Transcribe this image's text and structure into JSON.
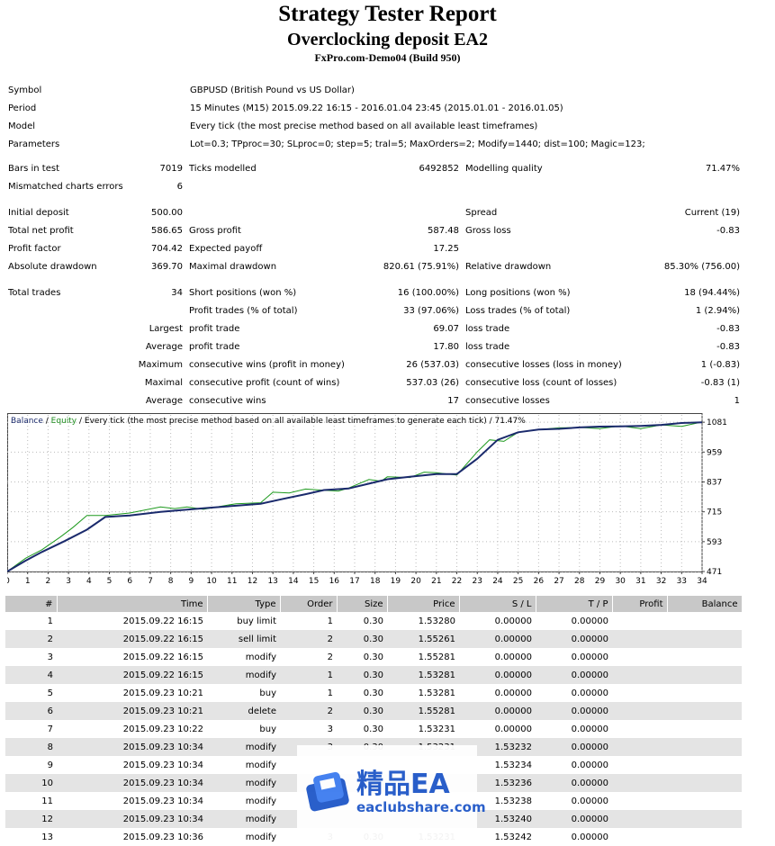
{
  "report": {
    "title": "Strategy Tester Report",
    "subtitle": "Overclocking deposit EA2",
    "server": "FxPro.com-Demo04 (Build 950)"
  },
  "info": {
    "symbol_label": "Symbol",
    "symbol": "GBPUSD (British Pound vs US Dollar)",
    "period_label": "Period",
    "period": "15 Minutes (M15) 2015.09.22 16:15 - 2016.01.04 23:45 (2015.01.01 - 2016.01.05)",
    "model_label": "Model",
    "model": "Every tick (the most precise method based on all available least timeframes)",
    "params_label": "Parameters",
    "params": "Lot=0.3; TPproc=30; SLproc=0; step=5; tral=5; MaxOrders=2; Modify=1440; dist=100; Magic=123;"
  },
  "stats": {
    "bars_label": "Bars in test",
    "bars": "7019",
    "ticks_label": "Ticks modelled",
    "ticks": "6492852",
    "mq_label": "Modelling quality",
    "mq": "71.47%",
    "mce_label": "Mismatched charts errors",
    "mce": "6",
    "dep_label": "Initial deposit",
    "dep": "500.00",
    "spread_label": "Spread",
    "spread": "Current (19)",
    "tnp_label": "Total net profit",
    "tnp": "586.65",
    "gp_label": "Gross profit",
    "gp": "587.48",
    "gl_label": "Gross loss",
    "gl": "-0.83",
    "pf_label": "Profit factor",
    "pf": "704.42",
    "ep_label": "Expected payoff",
    "ep": "17.25",
    "ad_label": "Absolute drawdown",
    "ad": "369.70",
    "md_label": "Maximal drawdown",
    "md": "820.61 (75.91%)",
    "rd_label": "Relative drawdown",
    "rd": "85.30% (756.00)",
    "tt_label": "Total trades",
    "tt": "34",
    "sp_label": "Short positions (won %)",
    "sp": "16 (100.00%)",
    "lp_label": "Long positions (won %)",
    "lp": "18 (94.44%)",
    "pt_label": "Profit trades (% of total)",
    "pt": "33 (97.06%)",
    "lt_label": "Loss trades (% of total)",
    "lt": "1 (2.94%)",
    "largest": "Largest",
    "lpt_label": "profit trade",
    "lpt": "69.07",
    "llt_label": "loss trade",
    "llt": "-0.83",
    "average": "Average",
    "apt_label": "profit trade",
    "apt": "17.80",
    "alt_label": "loss trade",
    "alt": "-0.83",
    "maximum": "Maximum",
    "mcw_label": "consecutive wins (profit in money)",
    "mcw": "26 (537.03)",
    "mcl_label": "consecutive losses (loss in money)",
    "mcl": "1 (-0.83)",
    "maximal": "Maximal",
    "mcp_label": "consecutive profit (count of wins)",
    "mcp": "537.03 (26)",
    "mclc_label": "consecutive loss (count of losses)",
    "mclc": "-0.83 (1)",
    "average2": "Average",
    "acw_label": "consecutive wins",
    "acw": "17",
    "acl_label": "consecutive losses",
    "acl": "1"
  },
  "chart_legend": {
    "balance": "Balance",
    "sep1": " / ",
    "equity": "Equity",
    "rest": " / Every tick (the most precise method based on all available least timeframes to generate each tick) / 71.47%"
  },
  "chart_data": {
    "type": "line",
    "x_ticks": [
      0,
      1,
      2,
      3,
      4,
      5,
      6,
      7,
      8,
      9,
      10,
      11,
      12,
      13,
      14,
      15,
      16,
      17,
      18,
      19,
      20,
      21,
      22,
      23,
      24,
      25,
      26,
      27,
      28,
      29,
      30,
      31,
      32,
      33,
      34
    ],
    "y_ticks": [
      471,
      593,
      715,
      837,
      959,
      1081
    ],
    "ylim": [
      471,
      1111
    ],
    "xlim": [
      0,
      34
    ],
    "series": [
      {
        "name": "Balance",
        "color": "#1a2a6c",
        "x": [
          0,
          0.9,
          1.7,
          2.8,
          3.9,
          4.8,
          6,
          7.5,
          8.8,
          10,
          11.2,
          12.4,
          13.5,
          14.6,
          15.5,
          16.7,
          17.7,
          18.6,
          19.7,
          21,
          22,
          23,
          24,
          25,
          26,
          27,
          28,
          29,
          30,
          31,
          32,
          33,
          34
        ],
        "y": [
          471,
          515,
          551,
          595,
          642,
          694,
          700,
          715,
          724,
          732,
          740,
          748,
          768,
          787,
          804,
          810,
          830,
          848,
          858,
          869,
          869,
          932,
          1009,
          1040,
          1051,
          1054,
          1060,
          1063,
          1064,
          1066,
          1070,
          1078,
          1081
        ]
      },
      {
        "name": "Equity",
        "color": "#1e9a1e",
        "x": [
          0,
          0.9,
          1.7,
          2.6,
          3.2,
          3.9,
          4.8,
          6,
          7.5,
          8.2,
          8.8,
          9.6,
          10.4,
          11.2,
          12.4,
          13,
          13.8,
          14.6,
          15.5,
          16.2,
          16.7,
          17.7,
          18.3,
          18.6,
          19.7,
          20.4,
          21,
          22,
          23,
          23.6,
          24.3,
          25,
          26,
          27,
          28,
          29,
          30,
          31,
          32,
          33,
          34
        ],
        "y": [
          471,
          525,
          560,
          612,
          650,
          700,
          700,
          710,
          735,
          728,
          735,
          725,
          737,
          748,
          752,
          795,
          792,
          808,
          803,
          800,
          812,
          847,
          840,
          858,
          855,
          877,
          875,
          865,
          960,
          1009,
          1003,
          1040,
          1051,
          1058,
          1060,
          1055,
          1066,
          1055,
          1070,
          1064,
          1082
        ]
      }
    ]
  },
  "orders": {
    "headers": [
      "#",
      "Time",
      "Type",
      "Order",
      "Size",
      "Price",
      "S / L",
      "T / P",
      "Profit",
      "Balance"
    ],
    "rows": [
      [
        "1",
        "2015.09.22 16:15",
        "buy limit",
        "1",
        "0.30",
        "1.53280",
        "0.00000",
        "0.00000",
        "",
        ""
      ],
      [
        "2",
        "2015.09.22 16:15",
        "sell limit",
        "2",
        "0.30",
        "1.55261",
        "0.00000",
        "0.00000",
        "",
        ""
      ],
      [
        "3",
        "2015.09.22 16:15",
        "modify",
        "2",
        "0.30",
        "1.55281",
        "0.00000",
        "0.00000",
        "",
        ""
      ],
      [
        "4",
        "2015.09.22 16:15",
        "modify",
        "1",
        "0.30",
        "1.53281",
        "0.00000",
        "0.00000",
        "",
        ""
      ],
      [
        "5",
        "2015.09.23 10:21",
        "buy",
        "1",
        "0.30",
        "1.53281",
        "0.00000",
        "0.00000",
        "",
        ""
      ],
      [
        "6",
        "2015.09.23 10:21",
        "delete",
        "2",
        "0.30",
        "1.55281",
        "0.00000",
        "0.00000",
        "",
        ""
      ],
      [
        "7",
        "2015.09.23 10:22",
        "buy",
        "3",
        "0.30",
        "1.53231",
        "0.00000",
        "0.00000",
        "",
        ""
      ],
      [
        "8",
        "2015.09.23 10:34",
        "modify",
        "3",
        "0.30",
        "1.53231",
        "1.53232",
        "0.00000",
        "",
        ""
      ],
      [
        "9",
        "2015.09.23 10:34",
        "modify",
        "",
        "",
        "",
        "1.53234",
        "0.00000",
        "",
        ""
      ],
      [
        "10",
        "2015.09.23 10:34",
        "modify",
        "",
        "",
        "",
        "1.53236",
        "0.00000",
        "",
        ""
      ],
      [
        "11",
        "2015.09.23 10:34",
        "modify",
        "",
        "",
        "",
        "1.53238",
        "0.00000",
        "",
        ""
      ],
      [
        "12",
        "2015.09.23 10:34",
        "modify",
        "",
        "",
        "",
        "1.53240",
        "0.00000",
        "",
        ""
      ],
      [
        "13",
        "2015.09.23 10:36",
        "modify",
        "3",
        "0.30",
        "1.53231",
        "1.53242",
        "0.00000",
        "",
        ""
      ]
    ]
  },
  "watermark": {
    "brand": "精品EA",
    "site": "eaclubshare.com",
    "icon": "ea-logo-icon"
  }
}
